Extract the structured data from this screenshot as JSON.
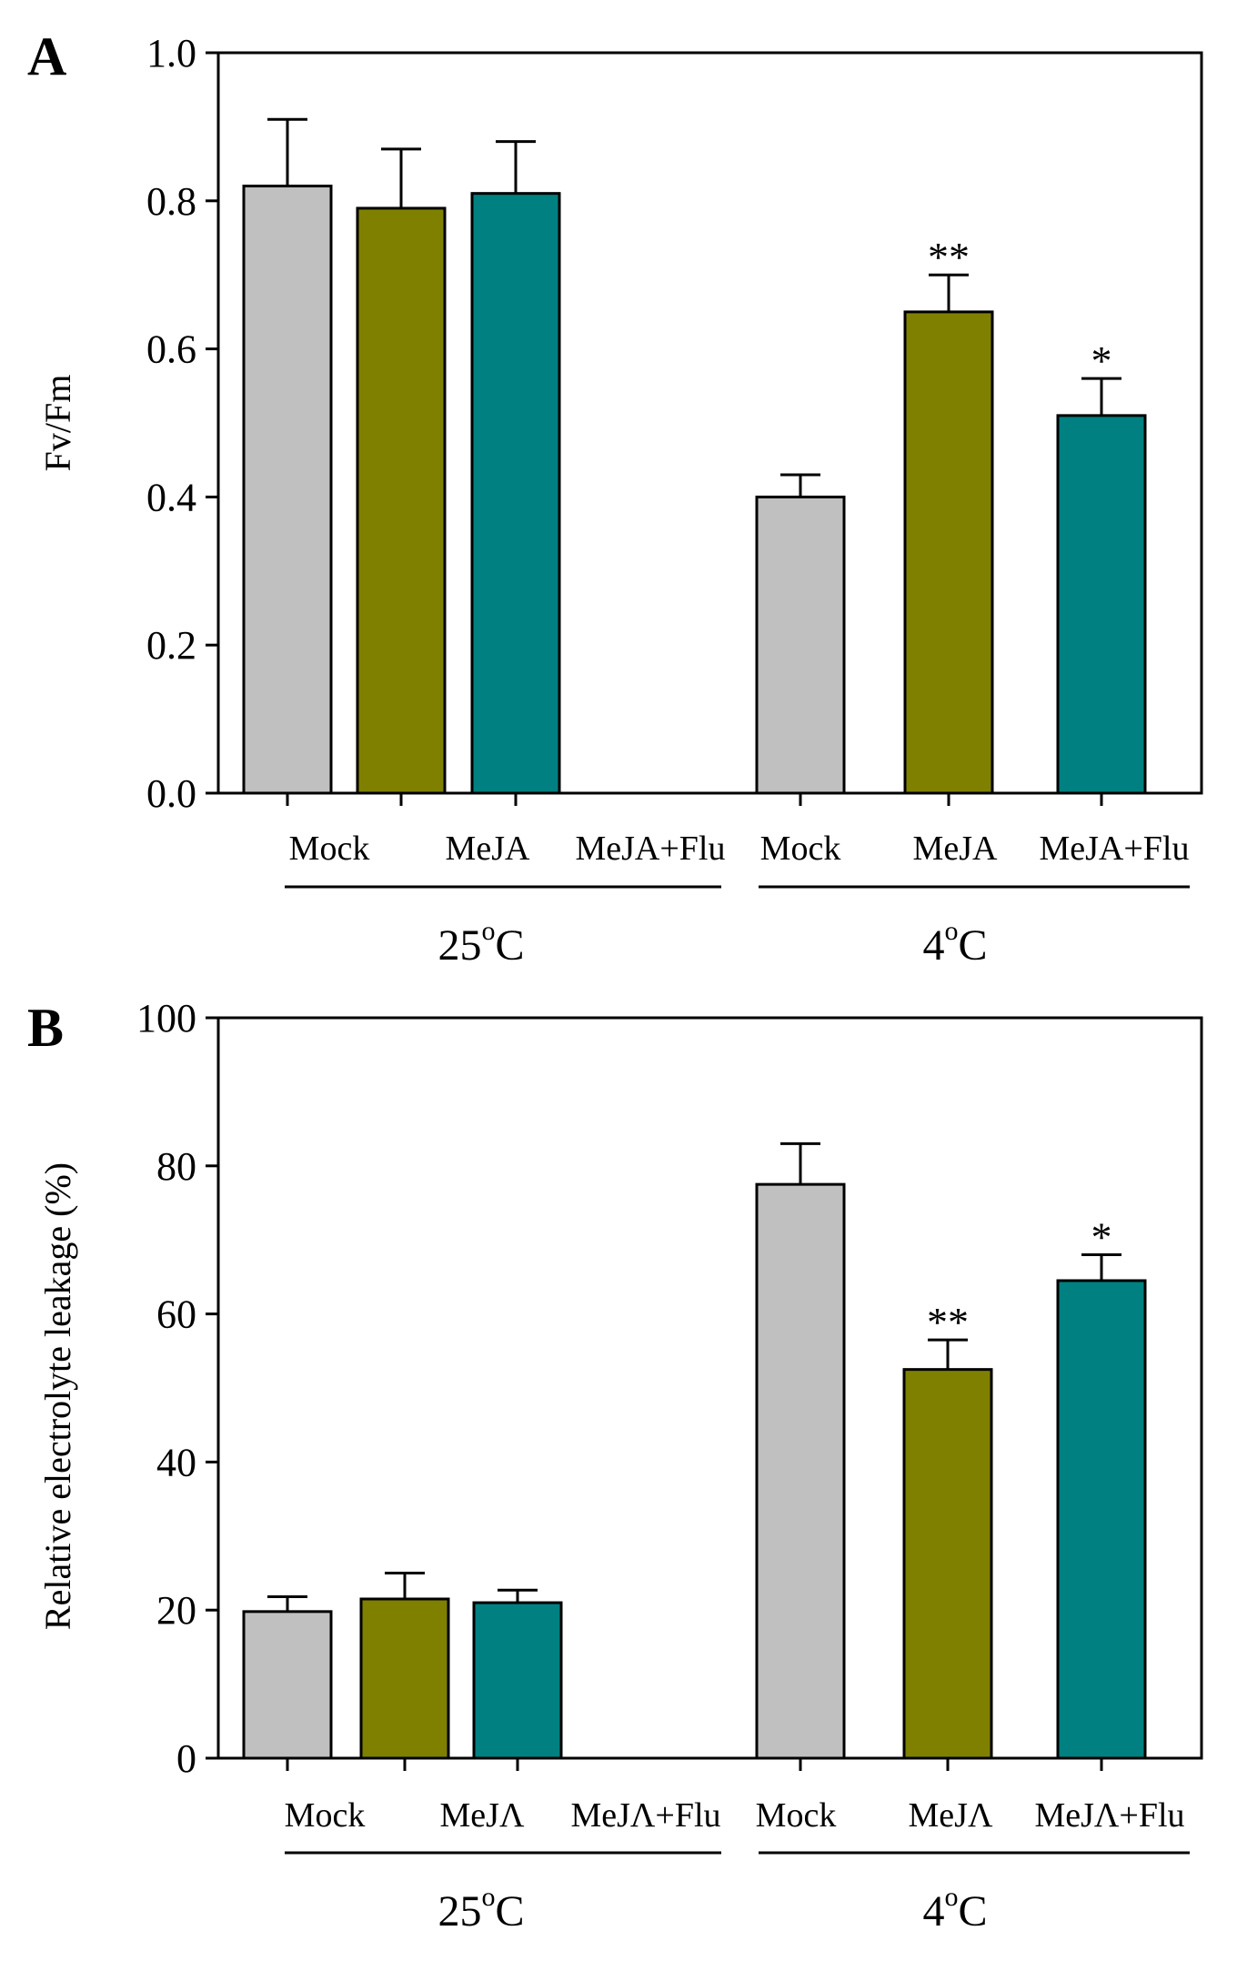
{
  "chart_data": [
    {
      "type": "bar",
      "panel": "A",
      "title": "",
      "ylabel": "Fv/Fm",
      "xlabel": "",
      "ylim": [
        0,
        1.0
      ],
      "yticks": [
        "0.0",
        "0.2",
        "0.4",
        "0.6",
        "0.8",
        "1.0"
      ],
      "ytick_values": [
        0,
        0.2,
        0.4,
        0.6,
        0.8,
        1.0
      ],
      "categories": [
        "Mock",
        "MeJA",
        "MeJA+Flu",
        "Mock",
        "MeJA",
        "MeJA+Flu"
      ],
      "groups": [
        {
          "label": "25",
          "unit": "C",
          "degree": "o"
        },
        {
          "label": "4",
          "unit": "C",
          "degree": "o"
        }
      ],
      "values": [
        0.82,
        0.79,
        0.81,
        0.4,
        0.65,
        0.51
      ],
      "errors": [
        0.09,
        0.08,
        0.07,
        0.03,
        0.05,
        0.05
      ],
      "significance": [
        "",
        "",
        "",
        "",
        "**",
        "*"
      ],
      "colors": [
        "#c0c0c0",
        "#808000",
        "#008080",
        "#c0c0c0",
        "#808000",
        "#008080"
      ]
    },
    {
      "type": "bar",
      "panel": "B",
      "title": "",
      "ylabel": "Relative electrolyte leakage (%)",
      "xlabel": "",
      "ylim": [
        0,
        100
      ],
      "yticks": [
        "0",
        "20",
        "40",
        "60",
        "80",
        "100"
      ],
      "ytick_values": [
        0,
        20,
        40,
        60,
        80,
        100
      ],
      "categories": [
        "Mock",
        "MeJΛ",
        "MeJΛ+Flu",
        "Mock",
        "MeJΛ",
        "MeJΛ+Flu"
      ],
      "groups": [
        {
          "label": "25",
          "unit": "C",
          "degree": "o"
        },
        {
          "label": "4",
          "unit": "C",
          "degree": "o"
        }
      ],
      "values": [
        19.8,
        21.5,
        21.0,
        77.5,
        52.5,
        64.5
      ],
      "errors": [
        2.0,
        3.5,
        1.7,
        5.5,
        4.0,
        3.5
      ],
      "significance": [
        "",
        "",
        "",
        "",
        "**",
        "*"
      ],
      "colors": [
        "#c0c0c0",
        "#808000",
        "#008080",
        "#c0c0c0",
        "#808000",
        "#008080"
      ]
    }
  ]
}
